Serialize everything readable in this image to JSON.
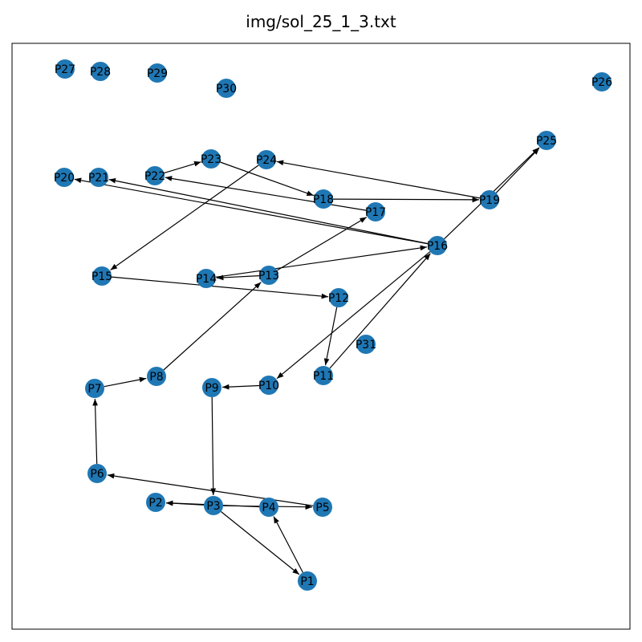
{
  "title": "img/sol_25_1_3.txt",
  "style": {
    "node_color": "#1f77b4",
    "edge_color": "#000000",
    "frame_color": "#000000",
    "label_color": "#000000"
  },
  "nodes": [
    {
      "id": "P1"
    },
    {
      "id": "P2"
    },
    {
      "id": "P3"
    },
    {
      "id": "P4"
    },
    {
      "id": "P5"
    },
    {
      "id": "P6"
    },
    {
      "id": "P7"
    },
    {
      "id": "P8"
    },
    {
      "id": "P9"
    },
    {
      "id": "P10"
    },
    {
      "id": "P11"
    },
    {
      "id": "P12"
    },
    {
      "id": "P13"
    },
    {
      "id": "P14"
    },
    {
      "id": "P15"
    },
    {
      "id": "P16"
    },
    {
      "id": "P17"
    },
    {
      "id": "P18"
    },
    {
      "id": "P19"
    },
    {
      "id": "P20"
    },
    {
      "id": "P21"
    },
    {
      "id": "P22"
    },
    {
      "id": "P23"
    },
    {
      "id": "P24"
    },
    {
      "id": "P25"
    },
    {
      "id": "P26"
    },
    {
      "id": "P27"
    },
    {
      "id": "P28"
    },
    {
      "id": "P29"
    },
    {
      "id": "P30"
    },
    {
      "id": "P31"
    }
  ],
  "edges": [
    {
      "from": "P1",
      "to": "P4"
    },
    {
      "from": "P3",
      "to": "P1"
    },
    {
      "from": "P3",
      "to": "P2"
    },
    {
      "from": "P3",
      "to": "P5"
    },
    {
      "from": "P4",
      "to": "P2"
    },
    {
      "from": "P5",
      "to": "P6"
    },
    {
      "from": "P6",
      "to": "P7"
    },
    {
      "from": "P7",
      "to": "P8"
    },
    {
      "from": "P8",
      "to": "P13"
    },
    {
      "from": "P9",
      "to": "P3"
    },
    {
      "from": "P10",
      "to": "P9"
    },
    {
      "from": "P12",
      "to": "P11"
    },
    {
      "from": "P11",
      "to": "P16"
    },
    {
      "from": "P15",
      "to": "P12"
    },
    {
      "from": "P13",
      "to": "P14"
    },
    {
      "from": "P13",
      "to": "P17"
    },
    {
      "from": "P14",
      "to": "P16"
    },
    {
      "from": "P16",
      "to": "P10"
    },
    {
      "from": "P16",
      "to": "P21"
    },
    {
      "from": "P16",
      "to": "P20"
    },
    {
      "from": "P16",
      "to": "P25"
    },
    {
      "from": "P17",
      "to": "P22"
    },
    {
      "from": "P18",
      "to": "P19"
    },
    {
      "from": "P19",
      "to": "P24"
    },
    {
      "from": "P19",
      "to": "P25"
    },
    {
      "from": "P22",
      "to": "P23"
    },
    {
      "from": "P23",
      "to": "P18"
    },
    {
      "from": "P24",
      "to": "P15"
    }
  ]
}
